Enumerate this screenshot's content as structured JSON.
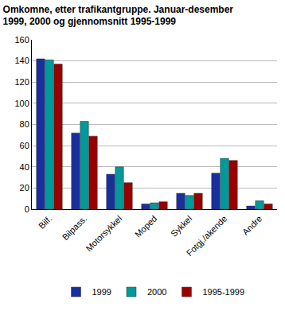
{
  "chart_data": {
    "type": "bar",
    "title": "Omkomne, etter trafikantgruppe. Januar-desember\n1999, 2000 og gjennomsnitt 1995-1999",
    "categories": [
      "Bilf.",
      "Bilpass.",
      "Motorsykkel",
      "Moped",
      "Sykkel",
      "Fotgj./akende",
      "Andre"
    ],
    "series": [
      {
        "name": "1999",
        "color": "#1a2f9e",
        "values": [
          142,
          72,
          33,
          5,
          15,
          34,
          3
        ]
      },
      {
        "name": "2000",
        "color": "#009a9a",
        "values": [
          141,
          83,
          40,
          6,
          13,
          48,
          8
        ]
      },
      {
        "name": "1995-1999",
        "color": "#990000",
        "values": [
          137,
          69,
          25,
          7,
          15,
          46,
          5
        ]
      }
    ],
    "ylim": [
      0,
      160
    ],
    "yticks": [
      0,
      20,
      40,
      60,
      80,
      100,
      120,
      140,
      160
    ],
    "grid": true,
    "legend": "bottom"
  }
}
